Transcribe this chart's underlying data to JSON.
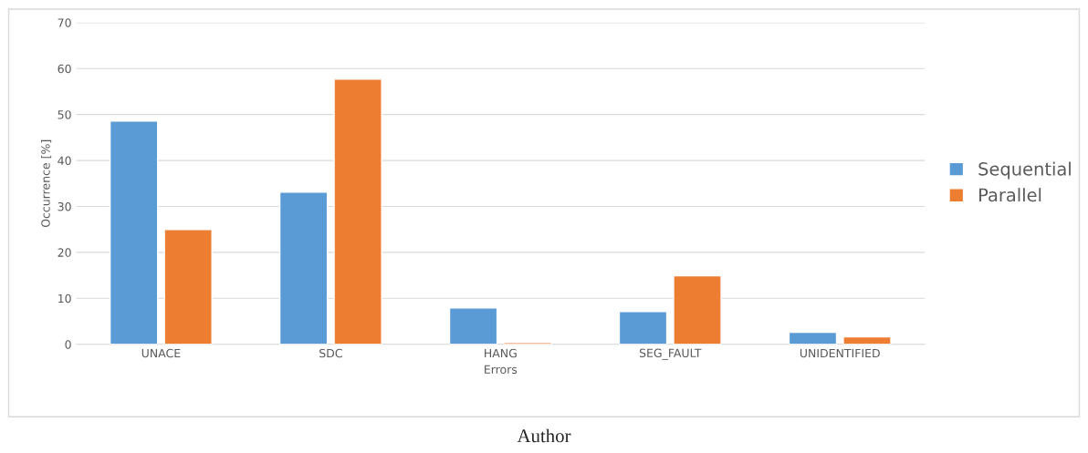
{
  "chart_data": {
    "type": "bar",
    "xlabel": "Errors",
    "ylabel": "Occurrence [%]",
    "categories": [
      "UNACE",
      "SDC",
      "HANG",
      "SEG_FAULT",
      "UNIDENTIFIED"
    ],
    "series": [
      {
        "name": "Sequential",
        "color": "#5b9bd5",
        "values": [
          48.6,
          33.1,
          7.9,
          7.1,
          2.6
        ]
      },
      {
        "name": "Parallel",
        "color": "#ed7d31",
        "values": [
          25.0,
          57.7,
          0.4,
          14.9,
          1.6
        ]
      }
    ],
    "ylim": [
      0,
      70
    ],
    "yticks": [
      0,
      10,
      20,
      30,
      40,
      50,
      60,
      70
    ],
    "grid": "y",
    "legend": "right",
    "annotations": [
      "Author"
    ]
  }
}
